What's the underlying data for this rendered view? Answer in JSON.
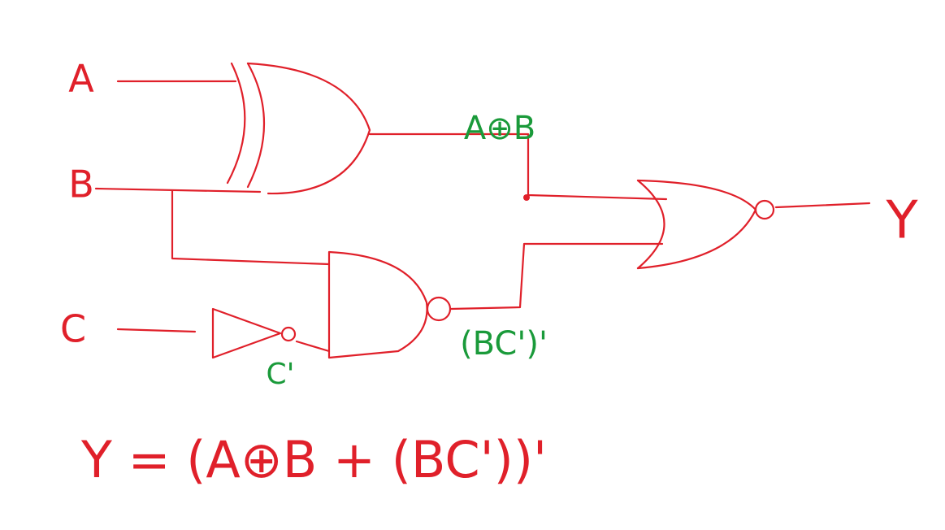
{
  "inputs": [
    "A",
    "B",
    "C"
  ],
  "signals": {
    "xor_out": "A⊕B",
    "not_out": "C'",
    "nand_out": "(BC')'"
  },
  "output": "Y",
  "equation": "Y = (A⊕B + (BC'))'"
}
